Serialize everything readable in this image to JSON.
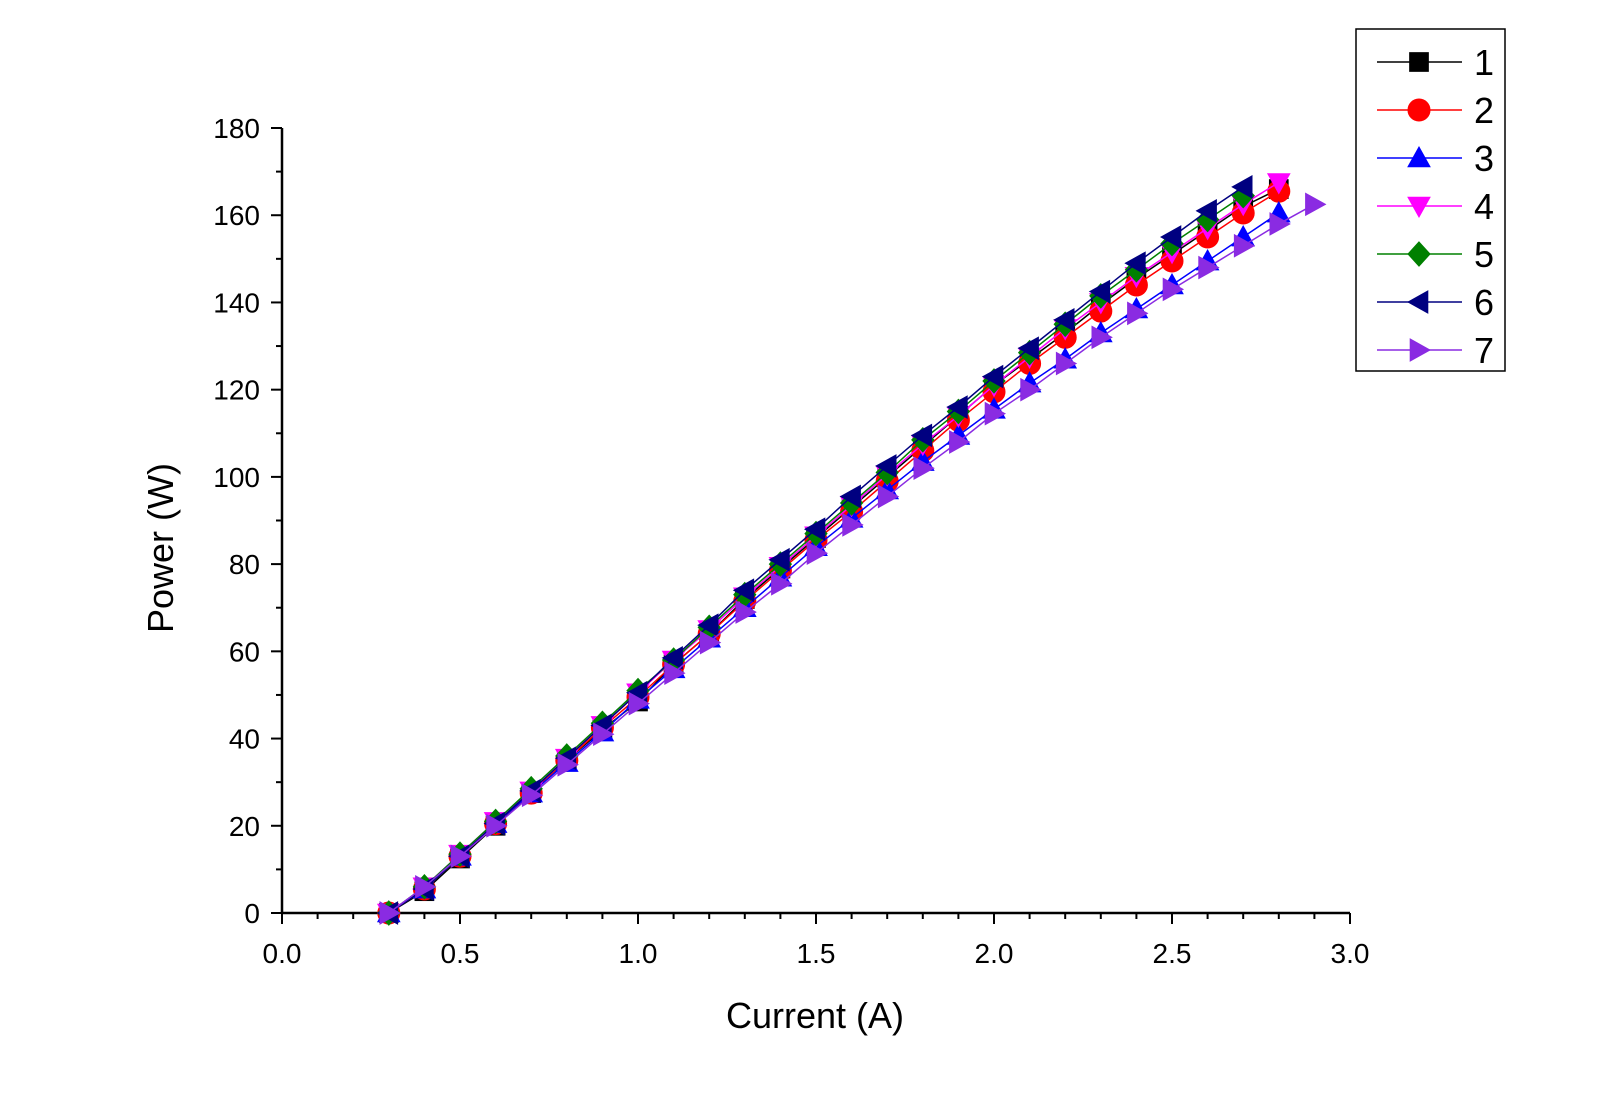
{
  "chart_data": {
    "type": "line",
    "title": "",
    "xlabel": "Current (A)",
    "ylabel": "Power (W)",
    "xlim": [
      0.0,
      3.0
    ],
    "ylim": [
      0,
      180
    ],
    "x_ticks": [
      "0.0",
      "0.5",
      "1.0",
      "1.5",
      "2.0",
      "2.5",
      "3.0"
    ],
    "y_ticks": [
      "0",
      "20",
      "40",
      "60",
      "80",
      "100",
      "120",
      "140",
      "160",
      "180"
    ],
    "grid": false,
    "legend_position": "top-right",
    "series": [
      {
        "name": "1",
        "color": "#000000",
        "marker": "square",
        "x": [
          0.3,
          0.4,
          0.5,
          0.6,
          0.7,
          0.8,
          0.9,
          1.0,
          1.1,
          1.2,
          1.3,
          1.4,
          1.5,
          1.6,
          1.7,
          1.8,
          1.9,
          2.0,
          2.1,
          2.2,
          2.3,
          2.4,
          2.5,
          2.6,
          2.7,
          2.8
        ],
        "y": [
          0,
          5,
          12.5,
          20,
          27.5,
          35,
          42,
          48.5,
          57,
          64,
          72,
          79,
          86,
          93,
          100,
          107,
          114,
          121,
          127,
          133,
          139.5,
          145.5,
          151,
          156.5,
          162,
          166
        ]
      },
      {
        "name": "2",
        "color": "#ff0000",
        "marker": "circle",
        "x": [
          0.3,
          0.4,
          0.5,
          0.6,
          0.7,
          0.8,
          0.9,
          1.0,
          1.1,
          1.2,
          1.3,
          1.4,
          1.5,
          1.6,
          1.7,
          1.8,
          1.9,
          2.0,
          2.1,
          2.2,
          2.3,
          2.4,
          2.5,
          2.6,
          2.7,
          2.8
        ],
        "y": [
          0,
          5.5,
          13,
          20.5,
          27.5,
          35,
          42.5,
          49.5,
          57,
          64,
          71.5,
          78.5,
          85.5,
          92,
          99,
          106,
          113,
          119.5,
          126,
          132,
          138,
          144,
          149.5,
          155,
          160.5,
          165.5
        ]
      },
      {
        "name": "3",
        "color": "#0000ff",
        "marker": "triangle-up",
        "x": [
          0.3,
          0.4,
          0.5,
          0.6,
          0.7,
          0.8,
          0.9,
          1.0,
          1.1,
          1.2,
          1.3,
          1.4,
          1.5,
          1.6,
          1.7,
          1.8,
          1.9,
          2.0,
          2.1,
          2.2,
          2.3,
          2.4,
          2.5,
          2.6,
          2.7,
          2.8
        ],
        "y": [
          0,
          5.5,
          13,
          20.5,
          27.5,
          34.5,
          41.5,
          49,
          56,
          63,
          70,
          77,
          84,
          90.5,
          97,
          103.5,
          109.5,
          115.5,
          121.5,
          127,
          133,
          138.5,
          144,
          149.5,
          155,
          160.5
        ]
      },
      {
        "name": "4",
        "color": "#ff00ff",
        "marker": "triangle-down",
        "x": [
          0.3,
          0.4,
          0.5,
          0.6,
          0.7,
          0.8,
          0.9,
          1.0,
          1.1,
          1.2,
          1.3,
          1.4,
          1.5,
          1.6,
          1.7,
          1.8,
          1.9,
          2.0,
          2.1,
          2.2,
          2.3,
          2.4,
          2.5,
          2.6,
          2.7,
          2.8
        ],
        "y": [
          0,
          6,
          13.5,
          21,
          28,
          35.5,
          43,
          50.5,
          58,
          65,
          72.5,
          79.5,
          86.5,
          93.5,
          100.5,
          107.5,
          114,
          121,
          127.5,
          134,
          140,
          146,
          151.5,
          157,
          162.5,
          167.5
        ]
      },
      {
        "name": "5",
        "color": "#008000",
        "marker": "diamond",
        "x": [
          0.3,
          0.4,
          0.5,
          0.6,
          0.7,
          0.8,
          0.9,
          1.0,
          1.1,
          1.2,
          1.3,
          1.4,
          1.5,
          1.6,
          1.7,
          1.8,
          1.9,
          2.0,
          2.1,
          2.2,
          2.3,
          2.4,
          2.5,
          2.6,
          2.7
        ],
        "y": [
          0,
          6,
          13.5,
          21,
          28.5,
          36,
          43.5,
          51,
          58,
          65.5,
          73,
          80,
          87,
          94,
          101,
          108.5,
          115,
          122,
          128.5,
          135,
          141.5,
          147.5,
          153.5,
          159,
          164.5
        ]
      },
      {
        "name": "6",
        "color": "#000080",
        "marker": "triangle-left",
        "x": [
          0.3,
          0.4,
          0.5,
          0.6,
          0.7,
          0.8,
          0.9,
          1.0,
          1.1,
          1.2,
          1.3,
          1.4,
          1.5,
          1.6,
          1.7,
          1.8,
          1.9,
          2.0,
          2.1,
          2.2,
          2.3,
          2.4,
          2.5,
          2.6,
          2.7
        ],
        "y": [
          0,
          5.5,
          13,
          20.5,
          28,
          35.5,
          43,
          50.5,
          58.5,
          66,
          74,
          81,
          88,
          95.5,
          102.5,
          109.5,
          116,
          123,
          129.5,
          136,
          142.5,
          149,
          155,
          161,
          166.5
        ]
      },
      {
        "name": "7",
        "color": "#8a2be2",
        "marker": "triangle-right",
        "x": [
          0.3,
          0.4,
          0.5,
          0.6,
          0.7,
          0.8,
          0.9,
          1.0,
          1.1,
          1.2,
          1.3,
          1.4,
          1.5,
          1.6,
          1.7,
          1.8,
          1.9,
          2.0,
          2.1,
          2.2,
          2.3,
          2.4,
          2.5,
          2.6,
          2.7,
          2.8,
          2.9
        ],
        "y": [
          0,
          6,
          13,
          20,
          27,
          34,
          41,
          48,
          55,
          62,
          69,
          75.5,
          82.5,
          89,
          95.5,
          102,
          108,
          114.5,
          120,
          126,
          132,
          137.5,
          143,
          148,
          153,
          158,
          162.5
        ]
      }
    ]
  }
}
